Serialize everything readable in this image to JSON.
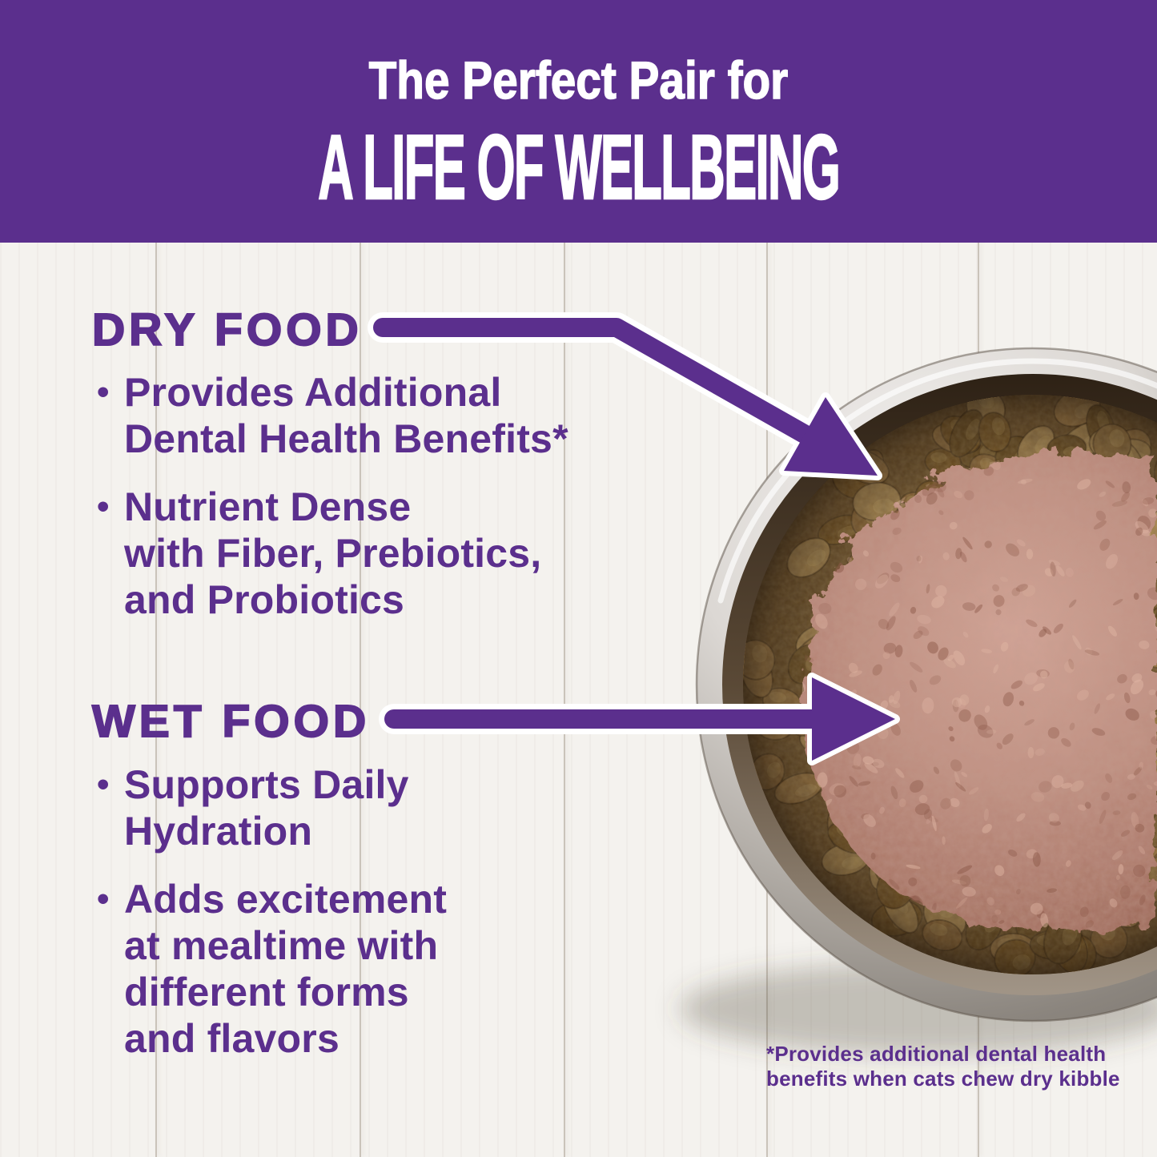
{
  "header": {
    "line1": "The Perfect Pair for",
    "line2": "A LIFE OF WELLBEING"
  },
  "sections": {
    "dry_food": {
      "title": "DRY FOOD",
      "bullets": [
        {
          "marker": "•",
          "text": "Provides Additional\nDental Health Benefits*"
        },
        {
          "marker": "•",
          "text": "Nutrient Dense\nwith Fiber, Prebiotics,\nand Probiotics"
        }
      ]
    },
    "wet_food": {
      "title": "WET FOOD",
      "bullets": [
        {
          "marker": "•",
          "text": "Supports Daily\nHydration"
        },
        {
          "marker": "•",
          "text": "Adds excitement\nat mealtime with\ndifferent forms\nand flavors"
        }
      ]
    }
  },
  "footnote": "*Provides additional dental health\nbenefits when cats chew dry kibble",
  "colors": {
    "banner_bg": "#5b2f8d",
    "text": "#5b2f8d",
    "arrow": "#5b2f8d",
    "arrow_outline": "#ffffff",
    "wood": "#f4f2ee",
    "plank_line": "#968a7a"
  },
  "photo": {
    "subject": "stainless-steel-bowl-with-dry-kibble-and-wet-food",
    "colors": {
      "steel_light": "#f0eeec",
      "steel_dark": "#7a746d",
      "bowl_gap_dark": "#241a10",
      "kibble_base": "#6a4d26",
      "kibble": [
        "#8a6434",
        "#9a7440",
        "#75521f",
        "#ab8850",
        "#64471c",
        "#8f6c3a"
      ],
      "pate": {
        "light": "#e0b6a4",
        "mid": "#bb8a7c",
        "dark": "#8d5a4a"
      }
    }
  }
}
